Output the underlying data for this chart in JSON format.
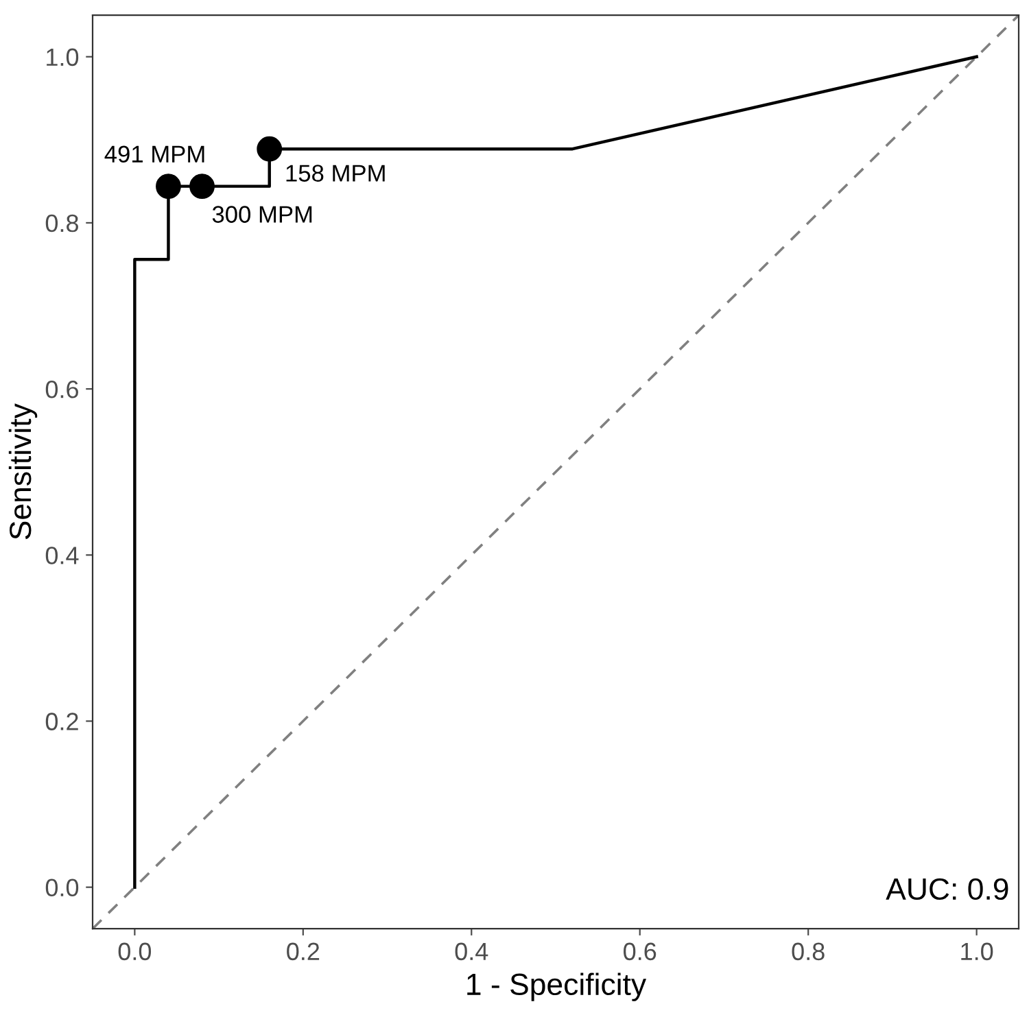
{
  "chart_data": {
    "type": "line",
    "xlabel": "1 - Specificity",
    "ylabel": "Sensitivity",
    "xlim": [
      -0.05,
      1.05
    ],
    "ylim": [
      -0.05,
      1.05
    ],
    "xticks": [
      {
        "value": 0,
        "label": "0.0"
      },
      0.2,
      0.4,
      0.6,
      0.8,
      {
        "value": 1,
        "label": "1.0"
      }
    ],
    "yticks": [
      {
        "value": 0,
        "label": "0.0"
      },
      0.2,
      0.4,
      0.6,
      0.8,
      {
        "value": 1,
        "label": "1.0"
      }
    ],
    "grid": false,
    "legend": false,
    "series": [
      {
        "color": "#808080",
        "line_style": "dashed",
        "marker": "none",
        "x": [
          -0.05,
          1.05
        ],
        "values": [
          -0.05,
          1.05
        ]
      },
      {
        "color": "#000000",
        "line_style": "solid",
        "marker": "none",
        "x": [
          0,
          0,
          0.04,
          0.04,
          0.08,
          0.16,
          0.16,
          0.52,
          1
        ],
        "values": [
          0,
          0.756,
          0.756,
          0.844,
          0.844,
          0.844,
          0.889,
          0.889,
          1
        ]
      },
      {
        "type": "scatter",
        "color": "#000000",
        "marker": "circle",
        "x": [
          0.04,
          0.08,
          0.16
        ],
        "values": [
          0.844,
          0.844,
          0.889
        ]
      }
    ],
    "annotations": [
      {
        "text": "491 MPM",
        "x": 0.04,
        "y": 0.844
      },
      {
        "text": "300 MPM",
        "x": 0.08,
        "y": 0.844
      },
      {
        "text": "158 MPM",
        "x": 0.16,
        "y": 0.889
      },
      "AUC: 0.9"
    ]
  }
}
